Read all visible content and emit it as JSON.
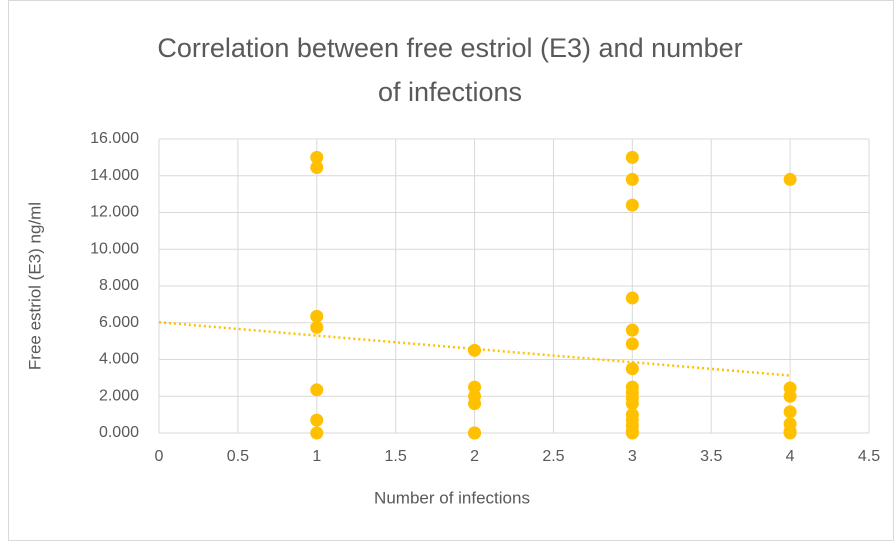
{
  "chart_data": {
    "type": "scatter",
    "title": "Correlation between free estriol (E3) and number of infections",
    "xlabel": "Number of infections",
    "ylabel": "Free estriol (E3) ng/ml",
    "series": [
      {
        "name": "Free estriol (E3)",
        "color": "#ffc000",
        "x": [
          1,
          1,
          1,
          1,
          1,
          1,
          1,
          2,
          2,
          2,
          2,
          2,
          2,
          3,
          3,
          3,
          3,
          3,
          3,
          3,
          3,
          3,
          3,
          3,
          3,
          3,
          3,
          3,
          3,
          4,
          4,
          4,
          4,
          4,
          4,
          4
        ],
        "values": [
          15.0,
          14.45,
          6.35,
          5.75,
          2.35,
          0.7,
          0.0,
          4.5,
          2.5,
          2.0,
          1.6,
          0.0,
          0.0,
          15.0,
          13.8,
          12.4,
          7.35,
          5.6,
          4.85,
          3.5,
          2.5,
          2.2,
          1.9,
          1.6,
          1.0,
          0.7,
          0.4,
          0.1,
          0.0,
          13.8,
          2.45,
          2.0,
          1.15,
          0.5,
          0.1,
          0.0
        ]
      }
    ],
    "trendline": "linear",
    "xlim": [
      0,
      4.5
    ],
    "xticks": [
      0,
      0.5,
      1,
      1.5,
      2,
      2.5,
      3,
      3.5,
      4,
      4.5
    ],
    "ylim": [
      0,
      16
    ],
    "yticks": [
      {
        "value": 0,
        "label": "0.000"
      },
      {
        "value": 2,
        "label": "2.000"
      },
      {
        "value": 4,
        "label": "4.000"
      },
      {
        "value": 6,
        "label": "6.000"
      },
      {
        "value": 8,
        "label": "8.000"
      },
      {
        "value": 10,
        "label": "10.000"
      },
      {
        "value": 12,
        "label": "12.000"
      },
      {
        "value": 14,
        "label": "14.000"
      },
      {
        "value": 16,
        "label": "16.000"
      }
    ],
    "grid": true
  }
}
